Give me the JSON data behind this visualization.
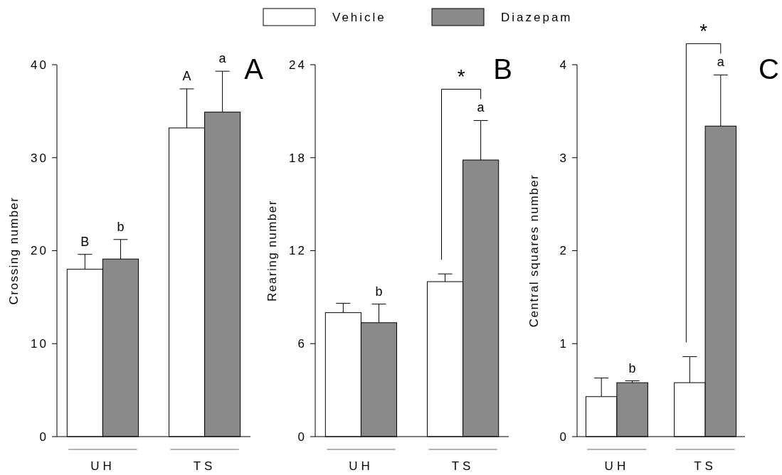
{
  "chart_data": [
    {
      "type": "bar",
      "title": "A",
      "ylabel": "Crossing number",
      "categories": [
        "UH",
        "TS"
      ],
      "ylim": [
        0,
        40
      ],
      "yticks": [
        0,
        10,
        20,
        30,
        40
      ],
      "legend": "top",
      "series": [
        {
          "name": "Vehicle",
          "color": "#ffffff",
          "values": [
            18.0,
            33.2
          ],
          "errors": [
            [
              18.0,
              19.6
            ],
            [
              33.2,
              37.4
            ]
          ]
        },
        {
          "name": "Diazepam",
          "color": "#8a8a8a",
          "values": [
            19.1,
            34.9
          ],
          "errors": [
            [
              19.1,
              21.2
            ],
            [
              34.9,
              39.3
            ]
          ]
        }
      ],
      "annotations": [
        "B",
        "b",
        "A",
        "a"
      ]
    },
    {
      "type": "bar",
      "title": "B",
      "ylabel": "Rearing number",
      "categories": [
        "UH",
        "TS"
      ],
      "ylim": [
        0,
        24
      ],
      "yticks": [
        0,
        6,
        12,
        18,
        24
      ],
      "series": [
        {
          "color": "#ffffff",
          "values": [
            8.0,
            10.0
          ],
          "errors": [
            [
              8.0,
              8.6
            ],
            [
              10.0,
              10.5
            ]
          ]
        },
        {
          "color": "#8a8a8a",
          "values": [
            7.35,
            17.85
          ],
          "errors": [
            [
              7.35,
              8.55
            ],
            [
              17.85,
              20.4
            ]
          ]
        }
      ],
      "annotations": [
        "b",
        "a",
        "*"
      ]
    },
    {
      "type": "bar",
      "title": "C",
      "ylabel": "Central squares number",
      "categories": [
        "UH",
        "TS"
      ],
      "ylim": [
        0,
        4
      ],
      "yticks": [
        0,
        1,
        2,
        3,
        4
      ],
      "series": [
        {
          "color": "#ffffff",
          "values": [
            0.43,
            0.58
          ],
          "errors": [
            [
              0.43,
              0.63
            ],
            [
              0.58,
              0.86
            ]
          ]
        },
        {
          "color": "#8a8a8a",
          "values": [
            0.58,
            3.34
          ],
          "errors": [
            [
              0.58,
              0.6
            ],
            [
              3.34,
              3.89
            ]
          ]
        }
      ],
      "annotations": [
        "b",
        "a",
        "*"
      ]
    }
  ]
}
